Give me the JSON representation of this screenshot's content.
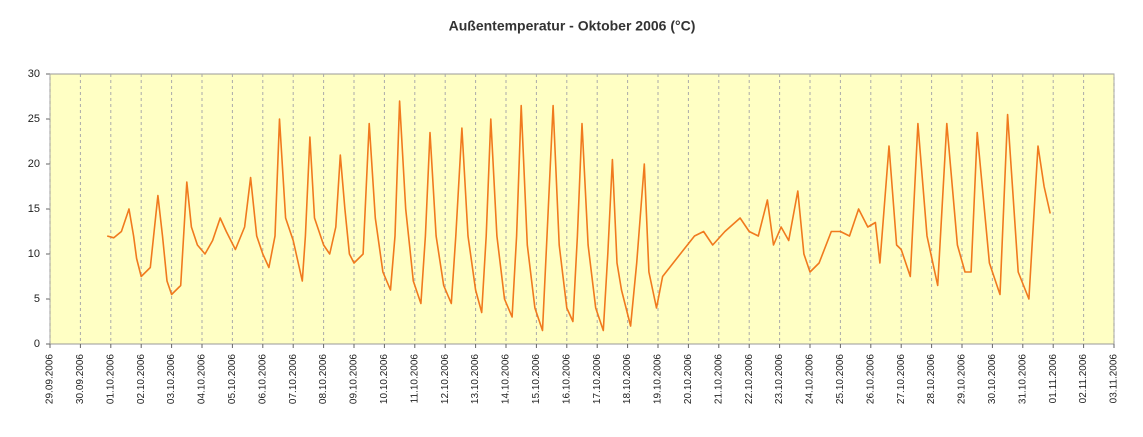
{
  "chart_data": {
    "type": "line",
    "title": "Außentemperatur - Oktober 2006 (°C)",
    "xlim": [
      0,
      35
    ],
    "ylim": [
      0,
      30
    ],
    "yticks": [
      0,
      5,
      10,
      15,
      20,
      25,
      30
    ],
    "xticks": [
      {
        "value": 0,
        "label": "29.09.2006"
      },
      {
        "value": 1,
        "label": "30.09.2006"
      },
      {
        "value": 2,
        "label": "01.10.2006"
      },
      {
        "value": 3,
        "label": "02.10.2006"
      },
      {
        "value": 4,
        "label": "03.10.2006"
      },
      {
        "value": 5,
        "label": "04.10.2006"
      },
      {
        "value": 6,
        "label": "05.10.2006"
      },
      {
        "value": 7,
        "label": "06.10.2006"
      },
      {
        "value": 8,
        "label": "07.10.2006"
      },
      {
        "value": 9,
        "label": "08.10.2006"
      },
      {
        "value": 10,
        "label": "09.10.2006"
      },
      {
        "value": 11,
        "label": "10.10.2006"
      },
      {
        "value": 12,
        "label": "11.10.2006"
      },
      {
        "value": 13,
        "label": "12.10.2006"
      },
      {
        "value": 14,
        "label": "13.10.2006"
      },
      {
        "value": 15,
        "label": "14.10.2006"
      },
      {
        "value": 16,
        "label": "15.10.2006"
      },
      {
        "value": 17,
        "label": "16.10.2006"
      },
      {
        "value": 18,
        "label": "17.10.2006"
      },
      {
        "value": 19,
        "label": "18.10.2006"
      },
      {
        "value": 20,
        "label": "19.10.2006"
      },
      {
        "value": 21,
        "label": "20.10.2006"
      },
      {
        "value": 22,
        "label": "21.10.2006"
      },
      {
        "value": 23,
        "label": "22.10.2006"
      },
      {
        "value": 24,
        "label": "23.10.2006"
      },
      {
        "value": 25,
        "label": "24.10.2006"
      },
      {
        "value": 26,
        "label": "25.10.2006"
      },
      {
        "value": 27,
        "label": "26.10.2006"
      },
      {
        "value": 28,
        "label": "27.10.2006"
      },
      {
        "value": 29,
        "label": "28.10.2006"
      },
      {
        "value": 30,
        "label": "29.10.2006"
      },
      {
        "value": 31,
        "label": "30.10.2006"
      },
      {
        "value": 32,
        "label": "31.10.2006"
      },
      {
        "value": 33,
        "label": "01.11.2006"
      },
      {
        "value": 34,
        "label": "02.11.2006"
      },
      {
        "value": 35,
        "label": "03.11.2006"
      }
    ],
    "grid": true,
    "x": [
      1.88,
      2.1,
      2.35,
      2.6,
      2.75,
      2.85,
      3.0,
      3.3,
      3.55,
      3.7,
      3.85,
      4.0,
      4.3,
      4.5,
      4.65,
      4.85,
      5.1,
      5.35,
      5.6,
      5.8,
      6.1,
      6.4,
      6.6,
      6.8,
      7.0,
      7.2,
      7.4,
      7.55,
      7.75,
      8.0,
      8.3,
      8.4,
      8.55,
      8.7,
      9.0,
      9.2,
      9.4,
      9.55,
      9.7,
      9.85,
      10.0,
      10.3,
      10.5,
      10.7,
      10.95,
      11.2,
      11.35,
      11.5,
      11.7,
      11.95,
      12.2,
      12.35,
      12.5,
      12.7,
      12.95,
      13.2,
      13.35,
      13.55,
      13.75,
      14.0,
      14.2,
      14.35,
      14.5,
      14.7,
      14.95,
      15.2,
      15.35,
      15.5,
      15.7,
      15.95,
      16.2,
      16.35,
      16.55,
      16.75,
      17.0,
      17.2,
      17.35,
      17.5,
      17.7,
      17.95,
      18.2,
      18.35,
      18.5,
      18.65,
      18.8,
      19.1,
      19.3,
      19.55,
      19.7,
      19.95,
      20.15,
      20.5,
      20.85,
      21.2,
      21.5,
      21.8,
      22.2,
      22.7,
      23.0,
      23.3,
      23.6,
      23.8,
      24.05,
      24.3,
      24.6,
      24.8,
      25.0,
      25.3,
      25.7,
      26.0,
      26.3,
      26.6,
      26.9,
      27.15,
      27.3,
      27.6,
      27.85,
      28.0,
      28.3,
      28.55,
      28.85,
      29.2,
      29.5,
      29.85,
      30.1,
      30.3,
      30.5,
      30.9,
      31.25,
      31.5,
      31.85,
      32.2,
      32.5,
      32.7,
      32.9
    ],
    "series": [
      {
        "color": "#f07a1e",
        "values": [
          12,
          11.8,
          12.5,
          15,
          12,
          9.5,
          7.5,
          8.5,
          16.5,
          12,
          7,
          5.5,
          6.5,
          18,
          13,
          11,
          10,
          11.5,
          14,
          12.5,
          10.5,
          13,
          18.5,
          12,
          10,
          8.5,
          12,
          25,
          14,
          11.5,
          7,
          12,
          23,
          14,
          11,
          10,
          13,
          21,
          15,
          10,
          9,
          10,
          24.5,
          14,
          8,
          6,
          12,
          27,
          15,
          7,
          4.5,
          12,
          23.5,
          12,
          6.5,
          4.5,
          12,
          24,
          12,
          6,
          3.5,
          12,
          25,
          12,
          5,
          3,
          12,
          26.5,
          11,
          4,
          1.5,
          12,
          26.5,
          11,
          4,
          2.5,
          12,
          24.5,
          11,
          4,
          1.5,
          10,
          20.5,
          9,
          6,
          2,
          9,
          20,
          8,
          4,
          7.5,
          9,
          10.5,
          12,
          12.5,
          11,
          12.5,
          14,
          12.5,
          12,
          16,
          11,
          13,
          11.5,
          17,
          10,
          8,
          9,
          12.5,
          12.5,
          12,
          15,
          13,
          13.5,
          9,
          22,
          11,
          10.5,
          7.5,
          24.5,
          12,
          6.5,
          24.5,
          11,
          8,
          8,
          23.5,
          9,
          5.5,
          25.5,
          8,
          5,
          22,
          17.5,
          14.5
        ]
      }
    ]
  }
}
